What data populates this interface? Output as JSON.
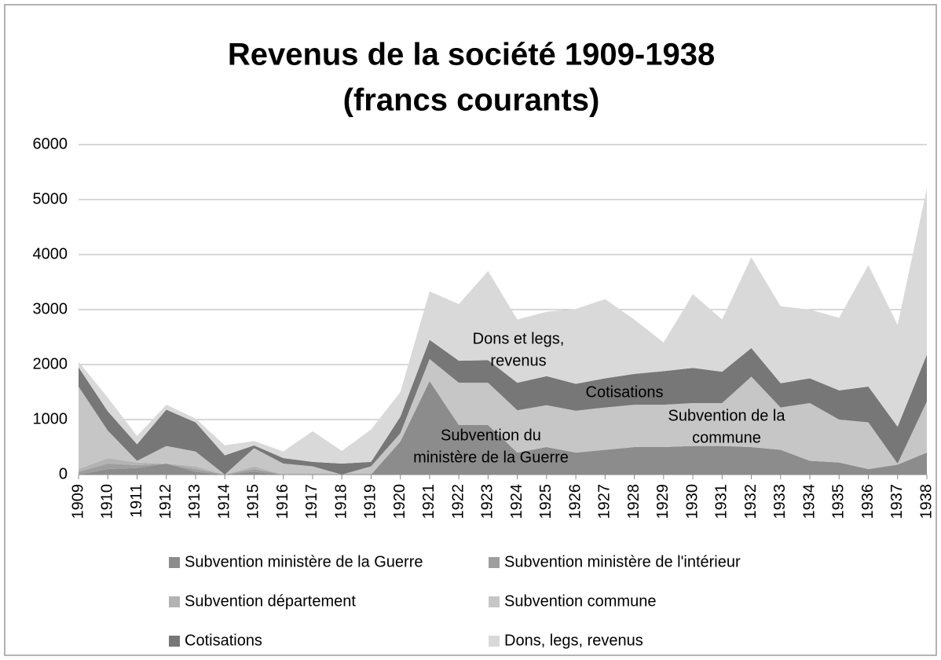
{
  "chart_data": {
    "type": "stacked_area",
    "title": "Revenus de la société 1909-1938",
    "subtitle": "(francs courants)",
    "categories": [
      "1909",
      "1910",
      "1911",
      "1912",
      "1913",
      "1914",
      "1915",
      "1916",
      "1917",
      "1918",
      "1919",
      "1920",
      "1921",
      "1922",
      "1923",
      "1924",
      "1925",
      "1926",
      "1927",
      "1928",
      "1929",
      "1930",
      "1931",
      "1932",
      "1933",
      "1934",
      "1935",
      "1936",
      "1937",
      "1938"
    ],
    "series": [
      {
        "name": "Subvention ministère de la Guerre",
        "color": "#8c8c8c",
        "values": [
          0,
          100,
          120,
          200,
          50,
          0,
          50,
          0,
          0,
          0,
          0,
          600,
          1700,
          900,
          900,
          400,
          500,
          400,
          450,
          500,
          500,
          520,
          520,
          500,
          450,
          250,
          220,
          100,
          180,
          400
        ]
      },
      {
        "name": "Subvention ministère de l'intérieur",
        "color": "#9e9e9e",
        "values": [
          50,
          100,
          50,
          0,
          50,
          0,
          50,
          0,
          0,
          0,
          0,
          0,
          0,
          0,
          0,
          0,
          0,
          0,
          0,
          0,
          0,
          0,
          0,
          0,
          0,
          0,
          0,
          0,
          0,
          0
        ]
      },
      {
        "name": "Subvention département",
        "color": "#b3b3b3",
        "values": [
          50,
          100,
          50,
          0,
          50,
          0,
          50,
          0,
          0,
          0,
          0,
          0,
          0,
          0,
          0,
          0,
          0,
          0,
          0,
          0,
          0,
          0,
          0,
          0,
          0,
          0,
          0,
          0,
          0,
          0
        ]
      },
      {
        "name": "Subvention commune",
        "color": "#c6c6c6",
        "values": [
          1500,
          500,
          30,
          320,
          270,
          0,
          330,
          200,
          150,
          0,
          150,
          150,
          400,
          770,
          770,
          770,
          760,
          760,
          770,
          770,
          770,
          780,
          780,
          1280,
          770,
          1050,
          780,
          850,
          20,
          930
        ]
      },
      {
        "name": "Cotisations",
        "color": "#777777",
        "values": [
          350,
          350,
          300,
          660,
          530,
          350,
          50,
          100,
          80,
          200,
          80,
          300,
          350,
          400,
          410,
          500,
          530,
          490,
          530,
          560,
          610,
          640,
          570,
          520,
          440,
          450,
          530,
          650,
          670,
          850
        ]
      },
      {
        "name": "Dons, legs, revenus",
        "color": "#d9d9d9",
        "values": [
          100,
          250,
          150,
          90,
          70,
          180,
          80,
          120,
          560,
          230,
          590,
          450,
          880,
          1030,
          1620,
          1150,
          1170,
          1360,
          1440,
          990,
          520,
          1340,
          950,
          1650,
          1400,
          1250,
          1320,
          2210,
          1850,
          3020
        ]
      }
    ],
    "annotations": [
      {
        "lines": [
          "Dons et legs,",
          "revenus"
        ]
      },
      {
        "lines": [
          "Cotisations"
        ]
      },
      {
        "lines": [
          "Subvention de la",
          "commune"
        ]
      },
      {
        "lines": [
          "Subvention du",
          "ministère de la Guerre"
        ]
      }
    ],
    "ylim": [
      0,
      6000
    ],
    "yticks": [
      0,
      1000,
      2000,
      3000,
      4000,
      5000,
      6000
    ],
    "grid": true,
    "legend": "bottom"
  }
}
